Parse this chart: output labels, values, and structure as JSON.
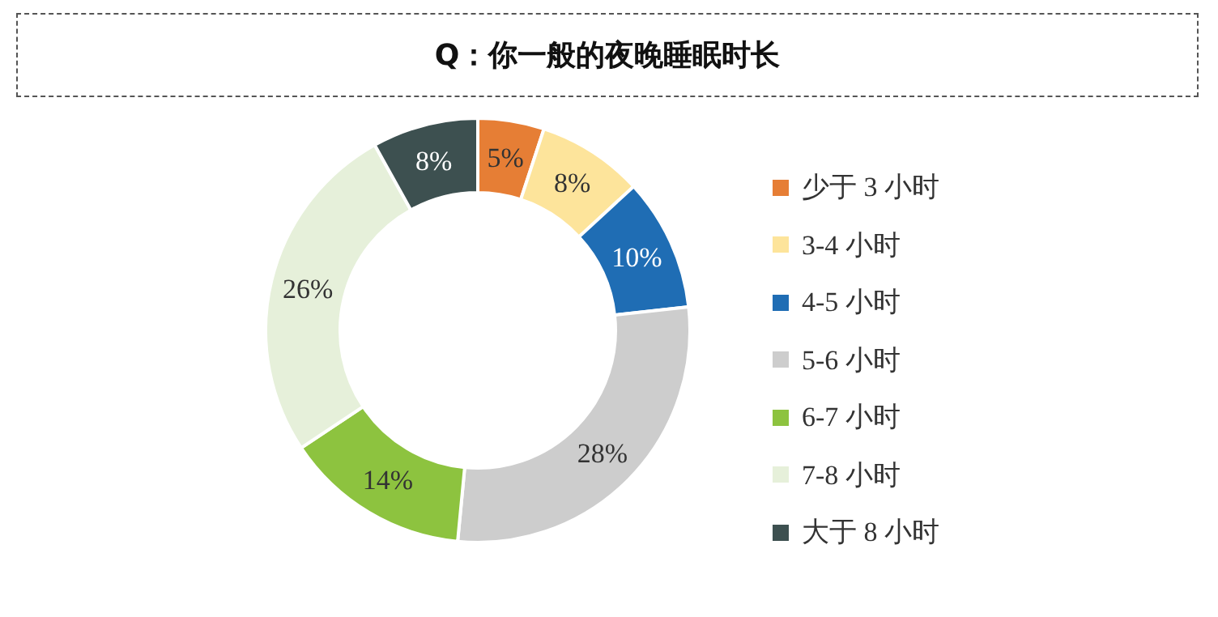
{
  "chart_data": {
    "type": "donut",
    "title": "Q：你一般的夜晚睡眠时长",
    "categories": [
      "少于 3 小时",
      "3-4 小时",
      "4-5 小时",
      "5-6 小时",
      "6-7 小时",
      "7-8 小时",
      "大于 8 小时"
    ],
    "values": [
      5,
      8,
      10,
      28,
      14,
      26,
      8
    ],
    "colors": [
      "#e67e35",
      "#fde49b",
      "#1f6db4",
      "#cdcdcd",
      "#8dc33f",
      "#e6f0da",
      "#3d5050"
    ],
    "value_labels": [
      "5%",
      "8%",
      "10%",
      "28%",
      "14%",
      "26%",
      "8%"
    ],
    "legend": "right"
  }
}
